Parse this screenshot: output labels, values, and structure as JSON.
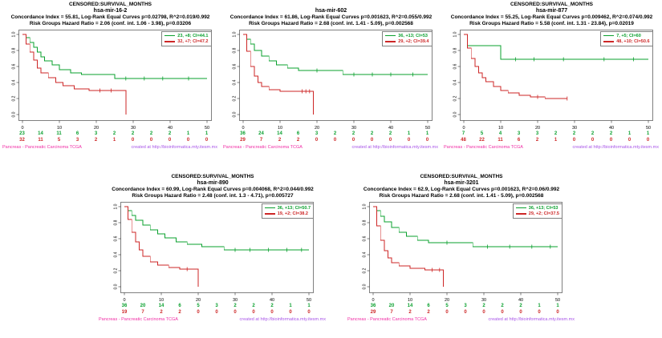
{
  "figure": {
    "background": "#ffffff",
    "description_title": "Kaplan-Meier survival plots"
  },
  "colors": {
    "low_risk_green": "#0AA02E",
    "high_risk_red": "#CD2626",
    "axis": "#000000",
    "footer_left": "#F02DA5",
    "footer_right": "#A855E8"
  },
  "axes": {
    "x_ticks": [
      0,
      10,
      20,
      30,
      40,
      50
    ],
    "y_tick_labels": [
      "0.0",
      "0.2",
      "0.4",
      "0.6",
      "0.8",
      "1.0"
    ],
    "risk_times": [
      0,
      5,
      10,
      15,
      20,
      25,
      30,
      35,
      40,
      45,
      50
    ],
    "xlim": [
      0,
      52
    ],
    "ylim": [
      0,
      1
    ],
    "grid": false,
    "legend_position": "top-right"
  },
  "chart_data": [
    {
      "type": "line",
      "title_top": "CENSORED:SURVIVAL_MONTHS",
      "gene": "hsa-mir-16-2",
      "stats1": "Concordance Index = 55.81, Log-Rank Equal Curves p=0.02798, R^2=0.019/0.992",
      "stats2": "Risk Groups Hazard Ratio = 2.06 (conf. int. 1.06 - 3.98), p=0.03206",
      "footer_left": "Pancreas - Pancreatic Carcinoma TCGA",
      "footer_right": "created at http://bioinformatica.mty.itesm.mx",
      "series": [
        {
          "label": "23, +8; CI=44.1",
          "color": "#0AA02E",
          "steps": [
            [
              0,
              1
            ],
            [
              1,
              0.96
            ],
            [
              2,
              0.9
            ],
            [
              3,
              0.84
            ],
            [
              4,
              0.78
            ],
            [
              5,
              0.72
            ],
            [
              6,
              0.67
            ],
            [
              8,
              0.62
            ],
            [
              10,
              0.56
            ],
            [
              13,
              0.52
            ],
            [
              16,
              0.5
            ],
            [
              25,
              0.45
            ],
            [
              50,
              0.45
            ]
          ],
          "censors": [
            [
              28,
              0.45
            ],
            [
              33,
              0.45
            ],
            [
              38,
              0.45
            ],
            [
              45,
              0.45
            ]
          ],
          "at_risk": [
            23,
            14,
            11,
            6,
            3,
            2,
            2,
            2,
            2,
            1,
            1
          ]
        },
        {
          "label": "32, +7; CI=47.2",
          "color": "#CD2626",
          "steps": [
            [
              0,
              1
            ],
            [
              1,
              0.88
            ],
            [
              2,
              0.78
            ],
            [
              3,
              0.68
            ],
            [
              4,
              0.58
            ],
            [
              5,
              0.52
            ],
            [
              7,
              0.46
            ],
            [
              9,
              0.4
            ],
            [
              11,
              0.36
            ],
            [
              14,
              0.32
            ],
            [
              18,
              0.3
            ],
            [
              28,
              0.3
            ],
            [
              28,
              0
            ]
          ],
          "censors": [
            [
              21,
              0.3
            ],
            [
              24,
              0.3
            ]
          ],
          "at_risk": [
            32,
            11,
            5,
            3,
            2,
            1,
            0,
            0,
            0,
            0,
            0
          ]
        }
      ]
    },
    {
      "type": "line",
      "title_top": "",
      "gene": "hsa-mir-602",
      "stats1": "Concordance Index = 61.86, Log-Rank Equal Curves p=0.001623, R^2=0.055/0.992",
      "stats2": "Risk Groups Hazard Ratio = 2.68 (conf. int. 1.41 - 5.09), p=0.002568",
      "footer_left": "Pancreas - Pancreatic Carcinoma TCGA",
      "footer_right": "created at http://bioinformatica.mty.itesm.mx",
      "series": [
        {
          "label": "36, +13; CI=53",
          "color": "#0AA02E",
          "steps": [
            [
              0,
              1
            ],
            [
              1,
              0.94
            ],
            [
              2,
              0.88
            ],
            [
              3,
              0.8
            ],
            [
              5,
              0.73
            ],
            [
              7,
              0.67
            ],
            [
              9,
              0.62
            ],
            [
              12,
              0.58
            ],
            [
              15,
              0.55
            ],
            [
              27,
              0.5
            ],
            [
              50,
              0.5
            ]
          ],
          "censors": [
            [
              20,
              0.55
            ],
            [
              30,
              0.5
            ],
            [
              35,
              0.5
            ],
            [
              40,
              0.5
            ],
            [
              46,
              0.5
            ]
          ],
          "at_risk": [
            36,
            24,
            14,
            6,
            3,
            2,
            2,
            2,
            2,
            1,
            1
          ]
        },
        {
          "label": "29, +2; CI=39.4",
          "color": "#CD2626",
          "steps": [
            [
              0,
              1
            ],
            [
              1,
              0.79
            ],
            [
              2,
              0.6
            ],
            [
              3,
              0.48
            ],
            [
              4,
              0.4
            ],
            [
              5,
              0.35
            ],
            [
              7,
              0.31
            ],
            [
              10,
              0.29
            ],
            [
              19,
              0.29
            ],
            [
              19,
              0
            ]
          ],
          "censors": [
            [
              16,
              0.29
            ],
            [
              17,
              0.29
            ],
            [
              18,
              0.29
            ]
          ],
          "at_risk": [
            29,
            7,
            2,
            2,
            0,
            0,
            0,
            0,
            0,
            0,
            0
          ]
        }
      ]
    },
    {
      "type": "line",
      "title_top": "CENSORED:SURVIVAL_MONTHS",
      "gene": "hsa-mir-877",
      "stats1": "Concordance Index = 55.25, Log-Rank Equal Curves p=0.009462, R^2=0.074/0.992",
      "stats2": "Risk Groups Hazard Ratio = 5.58 (conf. int. 1.31 - 23.84), p=0.02019",
      "footer_left": "Pancreas - Pancreatic Carcinoma TCGA",
      "footer_right": "created at http://bioinformatica.mty.itesm.mx",
      "series": [
        {
          "label": "7, +5; CI=60",
          "color": "#0AA02E",
          "steps": [
            [
              0,
              1
            ],
            [
              1,
              0.86
            ],
            [
              10,
              0.69
            ],
            [
              50,
              0.69
            ]
          ],
          "censors": [
            [
              14,
              0.69
            ],
            [
              19,
              0.69
            ],
            [
              27,
              0.69
            ],
            [
              38,
              0.69
            ],
            [
              46,
              0.69
            ]
          ],
          "at_risk": [
            7,
            5,
            4,
            3,
            3,
            2,
            2,
            2,
            2,
            1,
            1
          ]
        },
        {
          "label": "48, +10; CI=50.6",
          "color": "#CD2626",
          "steps": [
            [
              0,
              1
            ],
            [
              1,
              0.83
            ],
            [
              2,
              0.7
            ],
            [
              3,
              0.6
            ],
            [
              4,
              0.52
            ],
            [
              5,
              0.46
            ],
            [
              6,
              0.41
            ],
            [
              8,
              0.35
            ],
            [
              10,
              0.3
            ],
            [
              12,
              0.27
            ],
            [
              15,
              0.24
            ],
            [
              18,
              0.22
            ],
            [
              22,
              0.2
            ],
            [
              28,
              0.2
            ]
          ],
          "censors": [
            [
              20,
              0.22
            ],
            [
              28,
              0.2
            ]
          ],
          "at_risk": [
            48,
            22,
            11,
            6,
            2,
            1,
            0,
            0,
            0,
            0,
            0
          ]
        }
      ]
    },
    {
      "type": "line",
      "title_top": "CENSORED:SURVIVAL_MONTHS",
      "gene": "hsa-mir-890",
      "stats1": "Concordance Index = 60.99, Log-Rank Equal Curves p=0.004068, R^2=0.044/0.992",
      "stats2": "Risk Groups Hazard Ratio = 2.48 (conf. int. 1.3 - 4.71), p=0.005727",
      "footer_left": "Pancreas - Pancreatic Carcinoma TCGA",
      "footer_right": "created at http://bioinformatica.mty.itesm.mx",
      "series": [
        {
          "label": "36, +13; CI=50.7",
          "color": "#0AA02E",
          "steps": [
            [
              0,
              1
            ],
            [
              1,
              0.95
            ],
            [
              2,
              0.89
            ],
            [
              3,
              0.83
            ],
            [
              5,
              0.77
            ],
            [
              7,
              0.71
            ],
            [
              9,
              0.66
            ],
            [
              11,
              0.61
            ],
            [
              14,
              0.56
            ],
            [
              17,
              0.53
            ],
            [
              21,
              0.5
            ],
            [
              27,
              0.46
            ],
            [
              50,
              0.46
            ]
          ],
          "censors": [
            [
              30,
              0.46
            ],
            [
              34,
              0.46
            ],
            [
              39,
              0.46
            ],
            [
              44,
              0.46
            ],
            [
              48,
              0.46
            ]
          ],
          "at_risk": [
            36,
            20,
            14,
            6,
            5,
            3,
            2,
            2,
            2,
            1,
            1
          ]
        },
        {
          "label": "19, +2; CI=38.2",
          "color": "#CD2626",
          "steps": [
            [
              0,
              1
            ],
            [
              1,
              0.84
            ],
            [
              2,
              0.68
            ],
            [
              3,
              0.56
            ],
            [
              4,
              0.46
            ],
            [
              5,
              0.38
            ],
            [
              7,
              0.31
            ],
            [
              9,
              0.27
            ],
            [
              12,
              0.24
            ],
            [
              15,
              0.22
            ],
            [
              20,
              0.22
            ],
            [
              20,
              0
            ]
          ],
          "censors": [
            [
              17,
              0.22
            ]
          ],
          "at_risk": [
            19,
            7,
            2,
            2,
            0,
            0,
            0,
            0,
            0,
            0,
            0
          ]
        }
      ]
    },
    {
      "type": "line",
      "title_top": "CENSORED:SURVIVAL_MONTHS",
      "gene": "hsa-mir-3201",
      "stats1": "Concordance Index = 62.9, Log-Rank Equal Curves p=0.001623, R^2=0.06/0.992",
      "stats2": "Risk Groups Hazard Ratio = 2.68 (conf. int. 1.41 - 5.09), p=0.002568",
      "footer_left": "Pancreas - Pancreatic Carcinoma TCGA",
      "footer_right": "created at http://bioinformatica.mty.itesm.mx",
      "series": [
        {
          "label": "36, +13; CI=53",
          "color": "#0AA02E",
          "steps": [
            [
              0,
              1
            ],
            [
              1,
              0.95
            ],
            [
              2,
              0.88
            ],
            [
              3,
              0.81
            ],
            [
              5,
              0.74
            ],
            [
              7,
              0.68
            ],
            [
              9,
              0.63
            ],
            [
              12,
              0.58
            ],
            [
              15,
              0.55
            ],
            [
              27,
              0.5
            ],
            [
              50,
              0.5
            ]
          ],
          "censors": [
            [
              20,
              0.55
            ],
            [
              31,
              0.5
            ],
            [
              37,
              0.5
            ],
            [
              43,
              0.5
            ],
            [
              48,
              0.5
            ]
          ],
          "at_risk": [
            36,
            20,
            14,
            6,
            5,
            3,
            2,
            2,
            2,
            1,
            1
          ]
        },
        {
          "label": "29, +2; CI=37.5",
          "color": "#CD2626",
          "steps": [
            [
              0,
              1
            ],
            [
              1,
              0.76
            ],
            [
              2,
              0.58
            ],
            [
              3,
              0.45
            ],
            [
              4,
              0.36
            ],
            [
              5,
              0.3
            ],
            [
              7,
              0.26
            ],
            [
              10,
              0.23
            ],
            [
              14,
              0.21
            ],
            [
              19,
              0.21
            ],
            [
              19,
              0
            ]
          ],
          "censors": [
            [
              16,
              0.21
            ],
            [
              18,
              0.21
            ]
          ],
          "at_risk": [
            29,
            7,
            2,
            2,
            0,
            0,
            0,
            0,
            0,
            0,
            0
          ]
        }
      ]
    }
  ]
}
